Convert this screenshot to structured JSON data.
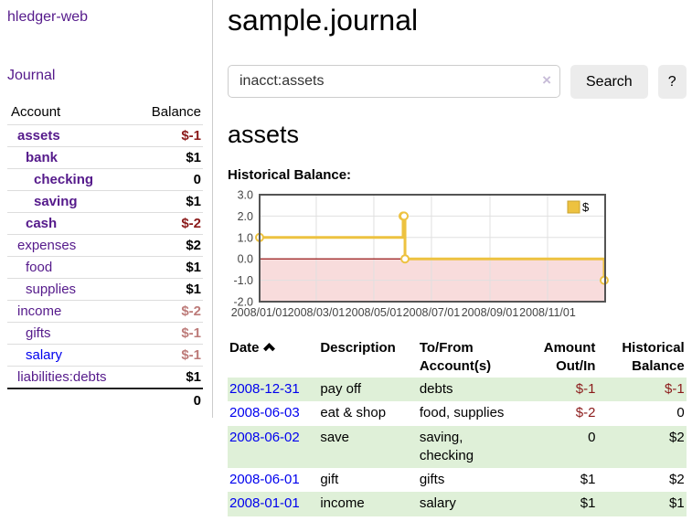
{
  "app": {
    "title": "hledger-web"
  },
  "sidebar": {
    "journal_label": "Journal",
    "accounts_table": {
      "headers": {
        "account": "Account",
        "balance": "Balance"
      },
      "rows": [
        {
          "name": "assets",
          "balance": "$-1",
          "level": 0,
          "bold": true,
          "neg": "strong"
        },
        {
          "name": "bank",
          "balance": "$1",
          "level": 1,
          "bold": true,
          "neg": null
        },
        {
          "name": "checking",
          "balance": "0",
          "level": 2,
          "bold": true,
          "neg": null
        },
        {
          "name": "saving",
          "balance": "$1",
          "level": 2,
          "bold": true,
          "neg": null
        },
        {
          "name": "cash",
          "balance": "$-2",
          "level": 1,
          "bold": true,
          "neg": "strong"
        },
        {
          "name": "expenses",
          "balance": "$2",
          "level": 0,
          "bold": false,
          "neg": null
        },
        {
          "name": "food",
          "balance": "$1",
          "level": 1,
          "bold": false,
          "neg": null
        },
        {
          "name": "supplies",
          "balance": "$1",
          "level": 1,
          "bold": false,
          "neg": null
        },
        {
          "name": "income",
          "balance": "$-2",
          "level": 0,
          "bold": false,
          "neg": "soft"
        },
        {
          "name": "gifts",
          "balance": "$-1",
          "level": 1,
          "bold": false,
          "neg": "soft"
        },
        {
          "name": "salary",
          "balance": "$-1",
          "level": 1,
          "bold": false,
          "neg": "soft",
          "link_state": "unvisited"
        },
        {
          "name": "liabilities:debts",
          "balance": "$1",
          "level": 0,
          "bold": false,
          "neg": null
        }
      ],
      "total": "0"
    }
  },
  "main": {
    "title": "sample.journal",
    "search": {
      "value": "inacct:assets",
      "clear_icon": "×",
      "button_label": "Search",
      "help_label": "?"
    },
    "account_heading": "assets",
    "chart_label": "Historical Balance:"
  },
  "chart_data": {
    "type": "line",
    "step": true,
    "title": "Historical Balance",
    "series": [
      {
        "name": "$",
        "color": "#edc240",
        "points": [
          [
            "2008-01-01",
            1
          ],
          [
            "2008-06-01",
            2
          ],
          [
            "2008-06-02",
            2
          ],
          [
            "2008-06-03",
            0
          ],
          [
            "2008-12-31",
            -1
          ]
        ]
      }
    ],
    "x_range": [
      "2008-01-01",
      "2009-01-01"
    ],
    "x_ticks": [
      "2008/01/01",
      "2008/03/01",
      "2008/05/01",
      "2008/07/01",
      "2008/09/01",
      "2008/11/01"
    ],
    "y_ticks": [
      3.0,
      2.0,
      1.0,
      0.0,
      -1.0,
      -2.0
    ],
    "ylim": [
      -2,
      3
    ],
    "grid": true,
    "legend": "$",
    "legend_position": "top-right",
    "negative_region_color": "#f8dcdc",
    "zero_line_color": "#8b0000",
    "border_color": "#545454",
    "grid_color": "#e0e0e0"
  },
  "register_table": {
    "headers": {
      "date": "Date",
      "description": "Description",
      "accounts": "To/From Account(s)",
      "amount": "Amount Out/In",
      "balance": "Historical Balance"
    },
    "rows": [
      {
        "date": "2008-12-31",
        "description": "pay off",
        "accounts": "debts",
        "amount": "$-1",
        "balance": "$-1",
        "amount_neg": true,
        "balance_neg": true
      },
      {
        "date": "2008-06-03",
        "description": "eat & shop",
        "accounts": "food, supplies",
        "amount": "$-2",
        "balance": "0",
        "amount_neg": true,
        "balance_neg": false
      },
      {
        "date": "2008-06-02",
        "description": "save",
        "accounts": "saving, checking",
        "amount": "0",
        "balance": "$2",
        "amount_neg": false,
        "balance_neg": false
      },
      {
        "date": "2008-06-01",
        "description": "gift",
        "accounts": "gifts",
        "amount": "$1",
        "balance": "$2",
        "amount_neg": false,
        "balance_neg": false
      },
      {
        "date": "2008-01-01",
        "description": "income",
        "accounts": "salary",
        "amount": "$1",
        "balance": "$1",
        "amount_neg": false,
        "balance_neg": false
      }
    ]
  }
}
